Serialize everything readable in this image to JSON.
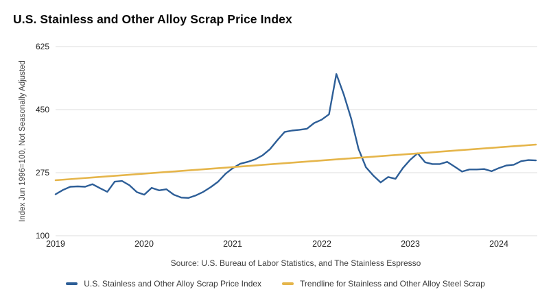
{
  "title": "U.S. Stainless and Other Alloy Scrap Price Index",
  "source": "Source: U.S. Bureau of Labor Statistics, and The Stainless Espresso",
  "legend": [
    {
      "label": "U.S. Stainless and Other Alloy Scrap Price Index",
      "color": "#2d5e97"
    },
    {
      "label": "Trendline for Stainless and Other Alloy Steel Scrap",
      "color": "#e5b54a"
    }
  ],
  "colors": {
    "price_line": "#2d5e97",
    "trend_line": "#e5b54a",
    "gridline": "#dcdcdc",
    "text": "#232323"
  },
  "chart_data": {
    "type": "line",
    "title": "U.S. Stainless and Other Alloy Scrap Price Index",
    "xlabel": "",
    "ylabel": "Index Jun 1996=100, Not Seasonally Adjusted",
    "ylim": [
      100,
      625
    ],
    "yticks": [
      100,
      275,
      450,
      625
    ],
    "xticks": [
      "2019",
      "2020",
      "2021",
      "2022",
      "2023",
      "2024"
    ],
    "grid": "horizontal",
    "legend_position": "bottom",
    "frequency": "monthly",
    "x_range": [
      "2019-01",
      "2024-06"
    ],
    "series": [
      {
        "name": "U.S. Stainless and Other Alloy Scrap Price Index",
        "color": "#2d5e97",
        "values": [
          215,
          227,
          236,
          237,
          236,
          243,
          232,
          222,
          250,
          252,
          240,
          221,
          214,
          233,
          226,
          229,
          214,
          206,
          205,
          212,
          222,
          235,
          250,
          272,
          288,
          300,
          305,
          312,
          323,
          340,
          365,
          388,
          392,
          394,
          397,
          413,
          422,
          437,
          549,
          492,
          425,
          341,
          290,
          267,
          248,
          263,
          258,
          288,
          311,
          329,
          304,
          299,
          299,
          305,
          292,
          278,
          284,
          284,
          285,
          279,
          288,
          295,
          297,
          307,
          310,
          309
        ]
      },
      {
        "name": "Trendline for Stainless and Other Alloy Steel Scrap",
        "color": "#e5b54a",
        "trend_start": 254,
        "trend_end": 353
      }
    ]
  }
}
